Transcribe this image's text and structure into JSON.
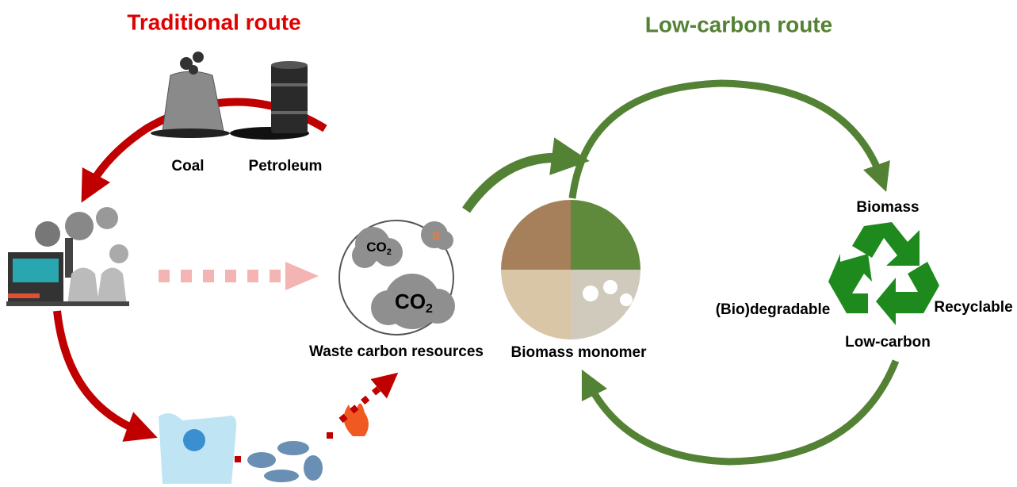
{
  "titles": {
    "traditional": "Traditional  route",
    "low_carbon": "Low-carbon  route"
  },
  "sources": [
    "Coal",
    "Petroleum"
  ],
  "waste": {
    "gases": [
      {
        "text": "CO",
        "sub": "2"
      },
      {
        "text": "S"
      },
      {
        "text": "CO",
        "sub": "2"
      }
    ],
    "label": "Waste carbon resources"
  },
  "biomass_monomer": "Biomass monomer",
  "cycle": {
    "top": "Biomass",
    "left": "(Bio)degradable",
    "right": "Recyclable",
    "bottom": "Low-carbon"
  }
}
